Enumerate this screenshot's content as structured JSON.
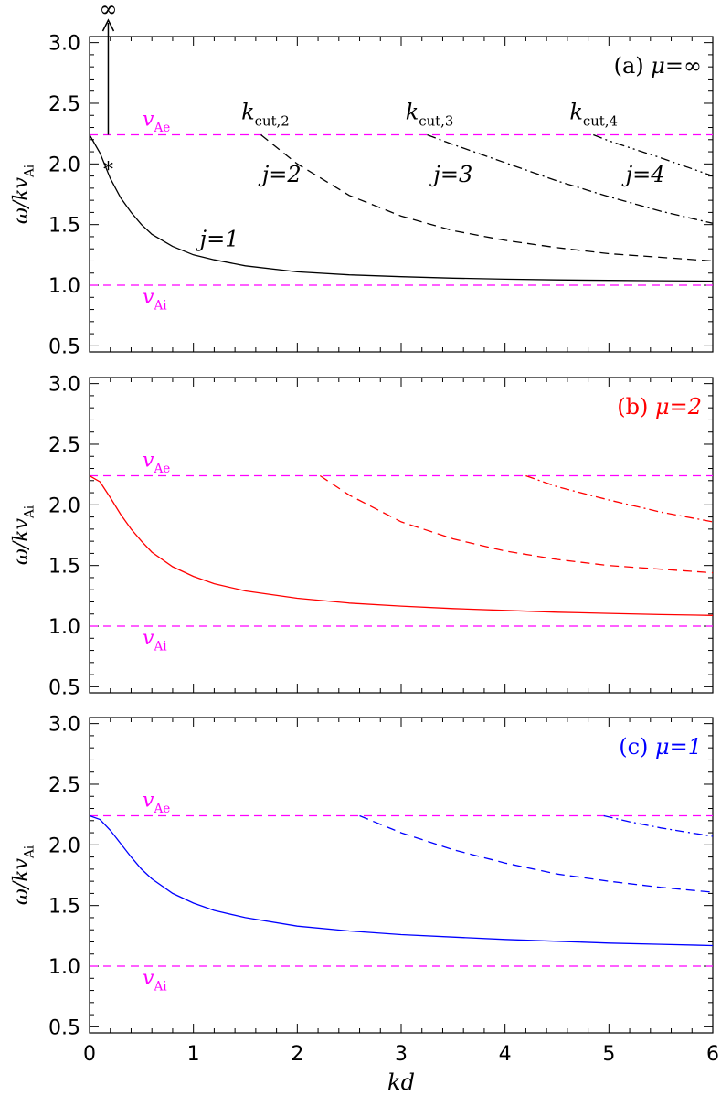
{
  "chart_data": [
    {
      "type": "line",
      "panel_label": "(a)",
      "mu_label": "μ=∞",
      "label_color": "#000000",
      "series_color": "#000000",
      "xlim": [
        0,
        6
      ],
      "ylim": [
        0.45,
        3.05
      ],
      "yticks": [
        "0.5",
        "1.0",
        "1.5",
        "2.0",
        "2.5",
        "3.0"
      ],
      "ylabel": "ω/kv",
      "ylabel_sub": "Ai",
      "reference_lines": [
        {
          "y": 2.24,
          "label": "v",
          "sub": "Ae",
          "color": "#ff00ff"
        },
        {
          "y": 1.0,
          "label": "v",
          "sub": "Ai",
          "color": "#ff00ff"
        }
      ],
      "series": [
        {
          "j": 1,
          "style": "solid",
          "x": [
            0.0,
            0.1,
            0.2,
            0.3,
            0.4,
            0.5,
            0.6,
            0.8,
            1.0,
            1.2,
            1.5,
            2.0,
            2.5,
            3.0,
            3.5,
            4.0,
            4.5,
            5.0,
            5.5,
            6.0
          ],
          "y": [
            2.24,
            2.09,
            1.88,
            1.72,
            1.6,
            1.5,
            1.42,
            1.32,
            1.25,
            1.21,
            1.16,
            1.11,
            1.085,
            1.07,
            1.058,
            1.05,
            1.044,
            1.04,
            1.037,
            1.034
          ]
        },
        {
          "j": 2,
          "style": "dash",
          "x": [
            1.65,
            2.0,
            2.5,
            3.0,
            3.5,
            4.0,
            4.5,
            5.0,
            5.5,
            6.0
          ],
          "y": [
            2.24,
            2.0,
            1.74,
            1.57,
            1.45,
            1.37,
            1.31,
            1.26,
            1.23,
            1.2
          ]
        },
        {
          "j": 3,
          "style": "dashdot",
          "x": [
            3.25,
            3.5,
            4.0,
            4.5,
            5.0,
            5.5,
            6.0
          ],
          "y": [
            2.24,
            2.16,
            2.01,
            1.86,
            1.73,
            1.61,
            1.51
          ]
        },
        {
          "j": 4,
          "style": "dashdotdot",
          "x": [
            4.85,
            5.0,
            5.5,
            6.0
          ],
          "y": [
            2.24,
            2.19,
            2.05,
            1.9
          ]
        }
      ],
      "annotations": {
        "infinity": "∞",
        "marker": "*",
        "kcut": [
          {
            "text": "k",
            "sub": "cut,2",
            "x": 1.62,
            "y": 2.4
          },
          {
            "text": "k",
            "sub": "cut,3",
            "x": 3.2,
            "y": 2.4
          },
          {
            "text": "k",
            "sub": "cut,4",
            "x": 4.78,
            "y": 2.4
          }
        ],
        "jlabels": [
          {
            "text": "j=1",
            "x": 1.25,
            "y": 1.32
          },
          {
            "text": "j=2",
            "x": 1.85,
            "y": 1.85
          },
          {
            "text": "j=3",
            "x": 3.5,
            "y": 1.85
          },
          {
            "text": "j=4",
            "x": 5.35,
            "y": 1.85
          }
        ]
      }
    },
    {
      "type": "line",
      "panel_label": "(b)",
      "mu_label": "μ=2",
      "label_color": "#ff0000",
      "series_color": "#ff0000",
      "xlim": [
        0,
        6
      ],
      "ylim": [
        0.45,
        3.05
      ],
      "yticks": [
        "0.5",
        "1.0",
        "1.5",
        "2.0",
        "2.5",
        "3.0"
      ],
      "ylabel": "ω/kv",
      "ylabel_sub": "Ai",
      "reference_lines": [
        {
          "y": 2.24,
          "label": "v",
          "sub": "Ae",
          "color": "#ff00ff"
        },
        {
          "y": 1.0,
          "label": "v",
          "sub": "Ai",
          "color": "#ff00ff"
        }
      ],
      "series": [
        {
          "j": 1,
          "style": "solid",
          "x": [
            0.0,
            0.1,
            0.2,
            0.3,
            0.4,
            0.5,
            0.6,
            0.8,
            1.0,
            1.2,
            1.5,
            2.0,
            2.5,
            3.0,
            3.5,
            4.0,
            4.5,
            5.0,
            5.5,
            6.0
          ],
          "y": [
            2.24,
            2.19,
            2.06,
            1.92,
            1.8,
            1.7,
            1.61,
            1.49,
            1.41,
            1.35,
            1.29,
            1.23,
            1.19,
            1.165,
            1.145,
            1.13,
            1.115,
            1.105,
            1.095,
            1.088
          ]
        },
        {
          "j": 2,
          "style": "dash",
          "x": [
            2.22,
            2.5,
            3.0,
            3.5,
            4.0,
            4.5,
            5.0,
            5.5,
            6.0
          ],
          "y": [
            2.24,
            2.08,
            1.86,
            1.72,
            1.62,
            1.55,
            1.5,
            1.47,
            1.44
          ]
        },
        {
          "j": 3,
          "style": "dashdot",
          "x": [
            4.2,
            4.5,
            5.0,
            5.5,
            6.0
          ],
          "y": [
            2.24,
            2.15,
            2.04,
            1.94,
            1.86
          ]
        }
      ]
    },
    {
      "type": "line",
      "panel_label": "(c)",
      "mu_label": "μ=1",
      "label_color": "#0000ff",
      "series_color": "#0000ff",
      "xlim": [
        0,
        6
      ],
      "ylim": [
        0.45,
        3.05
      ],
      "yticks": [
        "0.5",
        "1.0",
        "1.5",
        "2.0",
        "2.5",
        "3.0"
      ],
      "ylabel": "ω/kv",
      "ylabel_sub": "Ai",
      "xticks": [
        "0",
        "1",
        "2",
        "3",
        "4",
        "5",
        "6"
      ],
      "xlabel": "kd",
      "reference_lines": [
        {
          "y": 2.24,
          "label": "v",
          "sub": "Ae",
          "color": "#ff00ff"
        },
        {
          "y": 1.0,
          "label": "v",
          "sub": "Ai",
          "color": "#ff00ff"
        }
      ],
      "series": [
        {
          "j": 1,
          "style": "solid",
          "x": [
            0.0,
            0.1,
            0.2,
            0.3,
            0.4,
            0.5,
            0.6,
            0.8,
            1.0,
            1.2,
            1.5,
            2.0,
            2.5,
            3.0,
            3.5,
            4.0,
            4.5,
            5.0,
            5.5,
            6.0
          ],
          "y": [
            2.24,
            2.21,
            2.12,
            2.01,
            1.9,
            1.8,
            1.72,
            1.6,
            1.52,
            1.46,
            1.4,
            1.33,
            1.29,
            1.26,
            1.24,
            1.22,
            1.205,
            1.19,
            1.18,
            1.17
          ]
        },
        {
          "j": 2,
          "style": "dash",
          "x": [
            2.6,
            3.0,
            3.5,
            4.0,
            4.5,
            5.0,
            5.5,
            6.0
          ],
          "y": [
            2.24,
            2.1,
            1.96,
            1.85,
            1.76,
            1.7,
            1.65,
            1.61
          ]
        },
        {
          "j": 3,
          "style": "dashdot",
          "x": [
            4.95,
            5.2,
            5.5,
            6.0
          ],
          "y": [
            2.24,
            2.19,
            2.14,
            2.07
          ]
        }
      ]
    }
  ]
}
